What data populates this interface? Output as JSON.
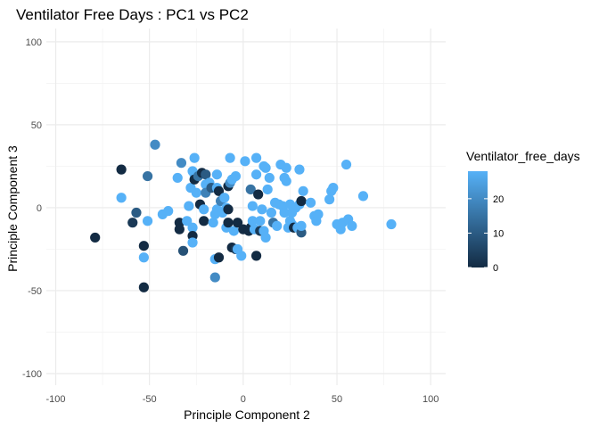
{
  "chart_data": {
    "type": "scatter",
    "title": "Ventilator Free Days : PC1 vs PC2",
    "xlabel": "Principle Component 2",
    "ylabel": "Principle Component 3",
    "xlim": [
      -105,
      108
    ],
    "ylim": [
      -107,
      108
    ],
    "x_ticks": [
      -100,
      -50,
      0,
      50,
      100
    ],
    "y_ticks": [
      -100,
      -50,
      0,
      50,
      100
    ],
    "grid": true,
    "color_scale": {
      "name": "Ventilator_free_days",
      "min": 0,
      "max": 28,
      "ticks": [
        0,
        10,
        20
      ],
      "low_color": "#132b43",
      "high_color": "#56b1f7",
      "legend_position": "right"
    },
    "points": [
      {
        "x": -79,
        "y": -18,
        "c": 0
      },
      {
        "x": -65,
        "y": 23,
        "c": 0
      },
      {
        "x": -65,
        "y": 6,
        "c": 28
      },
      {
        "x": -59,
        "y": -9,
        "c": 3
      },
      {
        "x": -57,
        "y": -3,
        "c": 10
      },
      {
        "x": -53,
        "y": -48,
        "c": 0
      },
      {
        "x": -53,
        "y": -23,
        "c": 0
      },
      {
        "x": -53,
        "y": -30,
        "c": 28
      },
      {
        "x": -51,
        "y": 19,
        "c": 15
      },
      {
        "x": -51,
        "y": -8,
        "c": 28
      },
      {
        "x": -47,
        "y": 38,
        "c": 20
      },
      {
        "x": -43,
        "y": -4,
        "c": 28
      },
      {
        "x": -40,
        "y": -2,
        "c": 28
      },
      {
        "x": -35,
        "y": 18,
        "c": 28
      },
      {
        "x": -34,
        "y": -9,
        "c": 0
      },
      {
        "x": -34,
        "y": -13,
        "c": 0
      },
      {
        "x": -33,
        "y": 27,
        "c": 20
      },
      {
        "x": -32,
        "y": -26,
        "c": 8
      },
      {
        "x": -30,
        "y": -8,
        "c": 28
      },
      {
        "x": -29,
        "y": 1,
        "c": 28
      },
      {
        "x": -28,
        "y": 12,
        "c": 28
      },
      {
        "x": -27,
        "y": 22,
        "c": 28
      },
      {
        "x": -27,
        "y": -12,
        "c": 28
      },
      {
        "x": -27,
        "y": -17,
        "c": 0
      },
      {
        "x": -27,
        "y": -21,
        "c": 28
      },
      {
        "x": -26,
        "y": 20,
        "c": 28
      },
      {
        "x": -26,
        "y": 30,
        "c": 28
      },
      {
        "x": -26,
        "y": 17,
        "c": 0
      },
      {
        "x": -25,
        "y": 9,
        "c": 28
      },
      {
        "x": -24,
        "y": 19,
        "c": 15
      },
      {
        "x": -23,
        "y": 2,
        "c": 0
      },
      {
        "x": -22,
        "y": 21,
        "c": 0
      },
      {
        "x": -21,
        "y": -8,
        "c": 0
      },
      {
        "x": -21,
        "y": -1,
        "c": 28
      },
      {
        "x": -20,
        "y": 14,
        "c": 28
      },
      {
        "x": -20,
        "y": 20,
        "c": 10
      },
      {
        "x": -20,
        "y": 9,
        "c": 18
      },
      {
        "x": -18,
        "y": 15,
        "c": 28
      },
      {
        "x": -17,
        "y": 12,
        "c": 10
      },
      {
        "x": -16,
        "y": -9,
        "c": 28
      },
      {
        "x": -15,
        "y": -4,
        "c": 28
      },
      {
        "x": -15,
        "y": -31,
        "c": 28
      },
      {
        "x": -15,
        "y": -42,
        "c": 20
      },
      {
        "x": -14,
        "y": 12,
        "c": 28
      },
      {
        "x": -14,
        "y": -1,
        "c": 28
      },
      {
        "x": -14,
        "y": 20,
        "c": 28
      },
      {
        "x": -13,
        "y": -30,
        "c": 0
      },
      {
        "x": -13,
        "y": 10,
        "c": 0
      },
      {
        "x": -12,
        "y": 4,
        "c": 18
      },
      {
        "x": -11,
        "y": -3,
        "c": 28
      },
      {
        "x": -10,
        "y": 6,
        "c": 28
      },
      {
        "x": -9,
        "y": 0,
        "c": 28
      },
      {
        "x": -9,
        "y": -12,
        "c": 28
      },
      {
        "x": -8,
        "y": -9,
        "c": 0
      },
      {
        "x": -8,
        "y": 13,
        "c": 0
      },
      {
        "x": -8,
        "y": -1,
        "c": 0
      },
      {
        "x": -7,
        "y": 30,
        "c": 28
      },
      {
        "x": -7,
        "y": 15,
        "c": 20
      },
      {
        "x": -6,
        "y": -24,
        "c": 0
      },
      {
        "x": -6,
        "y": 17,
        "c": 28
      },
      {
        "x": -5,
        "y": -14,
        "c": 28
      },
      {
        "x": -4,
        "y": -25,
        "c": 3
      },
      {
        "x": -4,
        "y": 19,
        "c": 28
      },
      {
        "x": -3,
        "y": -25,
        "c": 28
      },
      {
        "x": -3,
        "y": -9,
        "c": 0
      },
      {
        "x": -1,
        "y": -29,
        "c": 28
      },
      {
        "x": 0,
        "y": -13,
        "c": 0
      },
      {
        "x": 1,
        "y": 28,
        "c": 28
      },
      {
        "x": 3,
        "y": -14,
        "c": 0
      },
      {
        "x": 4,
        "y": -12,
        "c": 0
      },
      {
        "x": 4,
        "y": 11,
        "c": 15
      },
      {
        "x": 5,
        "y": -8,
        "c": 28
      },
      {
        "x": 5,
        "y": 1,
        "c": 28
      },
      {
        "x": 6,
        "y": -13,
        "c": 28
      },
      {
        "x": 7,
        "y": 30,
        "c": 28
      },
      {
        "x": 7,
        "y": 20,
        "c": 28
      },
      {
        "x": 7,
        "y": -29,
        "c": 0
      },
      {
        "x": 8,
        "y": 8,
        "c": 0
      },
      {
        "x": 9,
        "y": -8,
        "c": 28
      },
      {
        "x": 9,
        "y": -14,
        "c": 3
      },
      {
        "x": 10,
        "y": -1,
        "c": 28
      },
      {
        "x": 11,
        "y": -14,
        "c": 28
      },
      {
        "x": 11,
        "y": 25,
        "c": 28
      },
      {
        "x": 12,
        "y": 24,
        "c": 28
      },
      {
        "x": 12,
        "y": -18,
        "c": 28
      },
      {
        "x": 13,
        "y": 11,
        "c": 28
      },
      {
        "x": 14,
        "y": 18,
        "c": 28
      },
      {
        "x": 15,
        "y": -3,
        "c": 28
      },
      {
        "x": 16,
        "y": -9,
        "c": 15
      },
      {
        "x": 17,
        "y": 3,
        "c": 28
      },
      {
        "x": 18,
        "y": -11,
        "c": 28
      },
      {
        "x": 19,
        "y": 2,
        "c": 28
      },
      {
        "x": 20,
        "y": 26,
        "c": 28
      },
      {
        "x": 21,
        "y": 1,
        "c": 28
      },
      {
        "x": 22,
        "y": -3,
        "c": 28
      },
      {
        "x": 22,
        "y": 18,
        "c": 28
      },
      {
        "x": 23,
        "y": 24,
        "c": 28
      },
      {
        "x": 23,
        "y": 16,
        "c": 28
      },
      {
        "x": 24,
        "y": -12,
        "c": 28
      },
      {
        "x": 25,
        "y": -8,
        "c": 28
      },
      {
        "x": 25,
        "y": 2,
        "c": 28
      },
      {
        "x": 26,
        "y": -3,
        "c": 28
      },
      {
        "x": 26,
        "y": -10,
        "c": 28
      },
      {
        "x": 27,
        "y": -12,
        "c": 0
      },
      {
        "x": 28,
        "y": 0,
        "c": 28
      },
      {
        "x": 29,
        "y": -12,
        "c": 28
      },
      {
        "x": 30,
        "y": 23,
        "c": 28
      },
      {
        "x": 30,
        "y": 2,
        "c": 28
      },
      {
        "x": 31,
        "y": -15,
        "c": 10
      },
      {
        "x": 31,
        "y": 4,
        "c": 0
      },
      {
        "x": 31,
        "y": -11,
        "c": 28
      },
      {
        "x": 32,
        "y": 10,
        "c": 28
      },
      {
        "x": 36,
        "y": 3,
        "c": 28
      },
      {
        "x": 38,
        "y": -5,
        "c": 28
      },
      {
        "x": 39,
        "y": -8,
        "c": 28
      },
      {
        "x": 40,
        "y": -4,
        "c": 28
      },
      {
        "x": 46,
        "y": 5,
        "c": 28
      },
      {
        "x": 47,
        "y": 10,
        "c": 28
      },
      {
        "x": 48,
        "y": 12,
        "c": 28
      },
      {
        "x": 50,
        "y": -10,
        "c": 28
      },
      {
        "x": 52,
        "y": -13,
        "c": 28
      },
      {
        "x": 53,
        "y": -9,
        "c": 28
      },
      {
        "x": 55,
        "y": 26,
        "c": 28
      },
      {
        "x": 56,
        "y": -7,
        "c": 28
      },
      {
        "x": 58,
        "y": -11,
        "c": 28
      },
      {
        "x": 64,
        "y": 7,
        "c": 28
      },
      {
        "x": 79,
        "y": -10,
        "c": 28
      }
    ]
  }
}
